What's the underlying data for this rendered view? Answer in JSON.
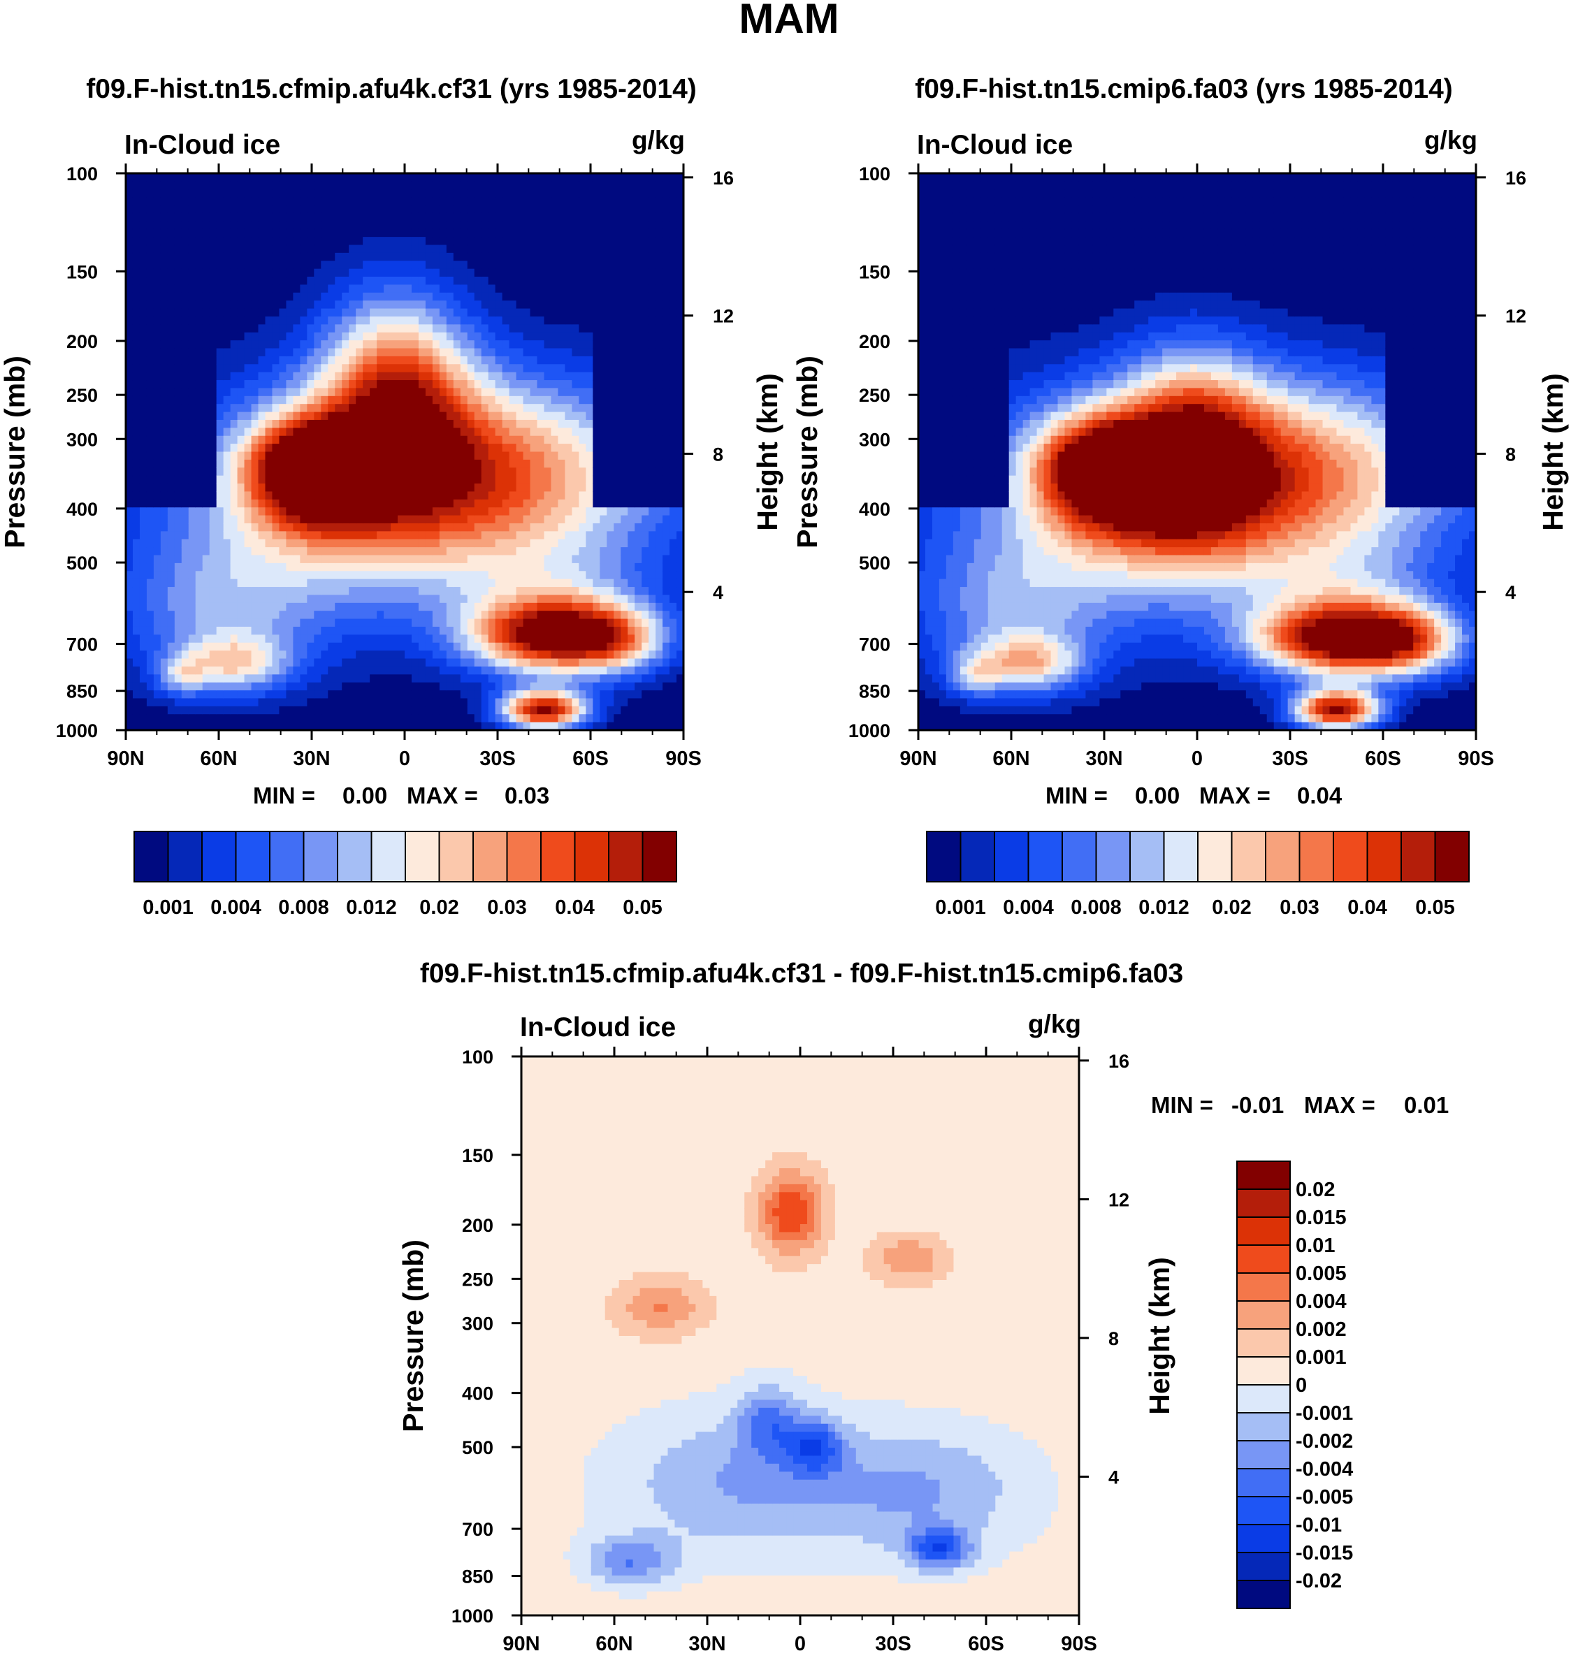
{
  "figure_title": "MAM",
  "colors": {
    "seq": [
      "#000a80",
      "#0528b8",
      "#0a3ce6",
      "#1e55f5",
      "#416ef5",
      "#7896f5",
      "#a5bef5",
      "#dce8fa",
      "#fdeadc",
      "#fbc8ac",
      "#f7a27c",
      "#f4774a",
      "#ef4b1c",
      "#dc3206",
      "#b41e0a",
      "#820000"
    ],
    "diff": [
      "#000a80",
      "#0528b8",
      "#0a3ce6",
      "#1e55f5",
      "#416ef5",
      "#7896f5",
      "#a5bef5",
      "#dce8fa",
      "#fdeadc",
      "#fbc8ac",
      "#f7a27c",
      "#f4774a",
      "#ef4b1c",
      "#dc3206",
      "#b41e0a",
      "#820000"
    ]
  },
  "chart_data": [
    {
      "type": "heatmap",
      "title": "f09.F-hist.tn15.cfmip.afu4k.cf31 (yrs 1985-2014)",
      "left_label": "In-Cloud ice",
      "units": "g/kg",
      "ylabel": "Pressure (mb)",
      "ylabel_right": "Height (km)",
      "x_ticks": [
        "90N",
        "60N",
        "30N",
        "0",
        "30S",
        "60S",
        "90S"
      ],
      "y_ticks": [
        "100",
        "150",
        "200",
        "250",
        "300",
        "400",
        "500",
        "700",
        "850",
        "1000"
      ],
      "y_ticks_right": [
        "16",
        "12",
        "8",
        "4"
      ],
      "min_label": "MIN =",
      "min_value": "0.00",
      "max_label": "MAX =",
      "max_value": "0.03",
      "colorbar_labels": [
        "0.001",
        "0.004",
        "0.008",
        "0.012",
        "0.02",
        "0.03",
        "0.04",
        "0.05"
      ],
      "background_level": 0,
      "features": [
        {
          "lat": -50,
          "p": 680,
          "w": 28,
          "h": 0.45,
          "level": 14.5
        },
        {
          "lat": 3,
          "p": 240,
          "w": 24,
          "h": 1.2,
          "level": 10.2
        },
        {
          "lat": -14,
          "p": 350,
          "w": 70,
          "h": 1.3,
          "level": 5.2
        },
        {
          "lat": -25,
          "p": 340,
          "w": 60,
          "h": 1.1,
          "level": 5.0
        },
        {
          "lat": -50,
          "p": 600,
          "w": 30,
          "h": 0.7,
          "level": 3.6
        },
        {
          "lat": 12,
          "p": 400,
          "w": 70,
          "h": 1.4,
          "level": 5.4
        },
        {
          "lat": 32,
          "p": 330,
          "w": 18,
          "h": 0.55,
          "level": 7.0
        },
        {
          "lat": 28,
          "p": 360,
          "w": 22,
          "h": 0.7,
          "level": 6.4
        },
        {
          "lat": 55,
          "p": 760,
          "w": 18,
          "h": 0.35,
          "level": 6.4
        },
        {
          "lat": 72,
          "p": 800,
          "w": 8,
          "h": 0.25,
          "level": 4.0
        },
        {
          "lat": 60,
          "p": 620,
          "w": 34,
          "h": 0.9,
          "level": 4.5
        },
        {
          "lat": -70,
          "p": 700,
          "w": 14,
          "h": 0.4,
          "level": 3.0
        }
      ],
      "extra": {
        "lat": -45,
        "p": 920,
        "w": 14,
        "h": 0.25,
        "level": 14.8
      }
    },
    {
      "type": "heatmap",
      "title": "f09.F-hist.tn15.cmip6.fa03 (yrs 1985-2014)",
      "left_label": "In-Cloud ice",
      "units": "g/kg",
      "ylabel": "Pressure (mb)",
      "ylabel_right": "Height (km)",
      "x_ticks": [
        "90N",
        "60N",
        "30N",
        "0",
        "30S",
        "60S",
        "90S"
      ],
      "y_ticks": [
        "100",
        "150",
        "200",
        "250",
        "300",
        "400",
        "500",
        "700",
        "850",
        "1000"
      ],
      "y_ticks_right": [
        "16",
        "12",
        "8",
        "4"
      ],
      "min_label": "MIN =",
      "min_value": "0.00",
      "max_label": "MAX =",
      "max_value": "0.04",
      "colorbar_labels": [
        "0.001",
        "0.004",
        "0.008",
        "0.012",
        "0.02",
        "0.03",
        "0.04",
        "0.05"
      ],
      "background_level": 0,
      "features": [
        {
          "lat": -50,
          "p": 690,
          "w": 30,
          "h": 0.45,
          "level": 15.2
        },
        {
          "lat": 2,
          "p": 310,
          "w": 22,
          "h": 1.2,
          "level": 7.8
        },
        {
          "lat": -14,
          "p": 350,
          "w": 70,
          "h": 1.3,
          "level": 5.2
        },
        {
          "lat": -25,
          "p": 340,
          "w": 60,
          "h": 1.1,
          "level": 5.0
        },
        {
          "lat": -50,
          "p": 600,
          "w": 30,
          "h": 0.7,
          "level": 3.6
        },
        {
          "lat": 12,
          "p": 400,
          "w": 70,
          "h": 1.4,
          "level": 5.4
        },
        {
          "lat": 32,
          "p": 330,
          "w": 18,
          "h": 0.55,
          "level": 7.0
        },
        {
          "lat": 28,
          "p": 360,
          "w": 22,
          "h": 0.7,
          "level": 6.4
        },
        {
          "lat": 55,
          "p": 760,
          "w": 18,
          "h": 0.35,
          "level": 7.0
        },
        {
          "lat": 72,
          "p": 800,
          "w": 8,
          "h": 0.25,
          "level": 4.0
        },
        {
          "lat": 60,
          "p": 620,
          "w": 34,
          "h": 0.9,
          "level": 4.5
        },
        {
          "lat": -70,
          "p": 700,
          "w": 14,
          "h": 0.4,
          "level": 3.0
        }
      ],
      "extra": {
        "lat": -45,
        "p": 920,
        "w": 14,
        "h": 0.25,
        "level": 14.8
      }
    },
    {
      "type": "heatmap",
      "title": "f09.F-hist.tn15.cfmip.afu4k.cf31 - f09.F-hist.tn15.cmip6.fa03",
      "left_label": "In-Cloud ice",
      "units": "g/kg",
      "ylabel": "Pressure (mb)",
      "ylabel_right": "Height (km)",
      "x_ticks": [
        "90N",
        "60N",
        "30N",
        "0",
        "30S",
        "60S",
        "90S"
      ],
      "y_ticks": [
        "100",
        "150",
        "200",
        "250",
        "300",
        "400",
        "500",
        "700",
        "850",
        "1000"
      ],
      "y_ticks_right": [
        "16",
        "12",
        "8",
        "4"
      ],
      "min_label": "MIN =",
      "min_value": "-0.01",
      "max_label": "MAX =",
      "max_value": "0.01",
      "colorbar_labels": [
        "0.02",
        "0.015",
        "0.01",
        "0.005",
        "0.004",
        "0.002",
        "0.001",
        "0",
        "-0.001",
        "-0.002",
        "-0.004",
        "-0.005",
        "-0.01",
        "-0.015",
        "-0.02"
      ],
      "background_level": 8,
      "features": [
        {
          "lat": 3,
          "p": 190,
          "w": 10,
          "h": 0.5,
          "level": 4.5
        },
        {
          "lat": -5,
          "p": 500,
          "w": 9,
          "h": 0.35,
          "level": -3.8
        },
        {
          "lat": 10,
          "p": 450,
          "w": 10,
          "h": 0.45,
          "level": -3.0
        },
        {
          "lat": 45,
          "p": 280,
          "w": 14,
          "h": 0.35,
          "level": 2.6
        },
        {
          "lat": -35,
          "p": 230,
          "w": 12,
          "h": 0.3,
          "level": 2.4
        },
        {
          "lat": -45,
          "p": 760,
          "w": 10,
          "h": 0.25,
          "level": -4.5
        },
        {
          "lat": 55,
          "p": 800,
          "w": 14,
          "h": 0.3,
          "level": -3.2
        },
        {
          "lat": 20,
          "p": 580,
          "w": 40,
          "h": 0.9,
          "level": -2.5
        },
        {
          "lat": -40,
          "p": 600,
          "w": 35,
          "h": 0.8,
          "level": -2.4
        }
      ]
    }
  ]
}
